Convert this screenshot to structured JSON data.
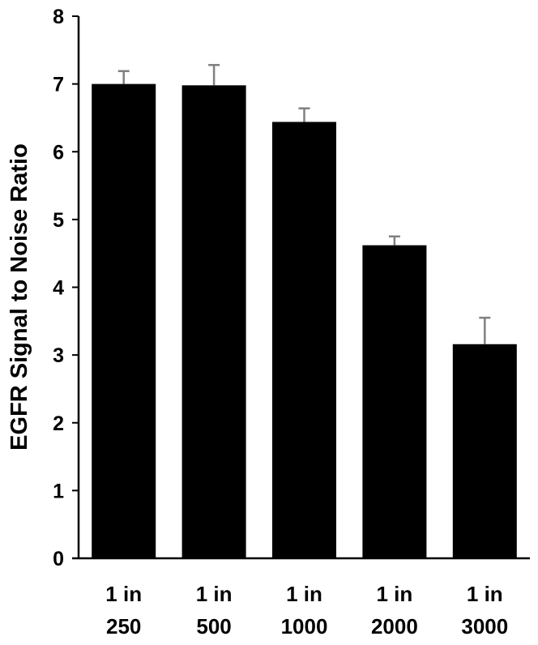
{
  "chart_data": {
    "type": "bar",
    "title": "",
    "xlabel": "",
    "ylabel": "EGFR Signal to Noise Ratio",
    "categories": [
      [
        "1 in",
        "250"
      ],
      [
        "1 in",
        "500"
      ],
      [
        "1 in",
        "1000"
      ],
      [
        "1 in",
        "2000"
      ],
      [
        "1 in",
        "3000"
      ]
    ],
    "values": [
      7.0,
      6.98,
      6.44,
      4.62,
      3.16
    ],
    "error_bars": [
      0.19,
      0.3,
      0.2,
      0.13,
      0.39
    ],
    "ylim": [
      0,
      8
    ],
    "yticks": [
      0,
      1,
      2,
      3,
      4,
      5,
      6,
      7,
      8
    ],
    "grid": false,
    "legend": "none",
    "colors": {
      "bar": "#000000",
      "error_bar": "#808080",
      "axis": "#000000"
    }
  }
}
